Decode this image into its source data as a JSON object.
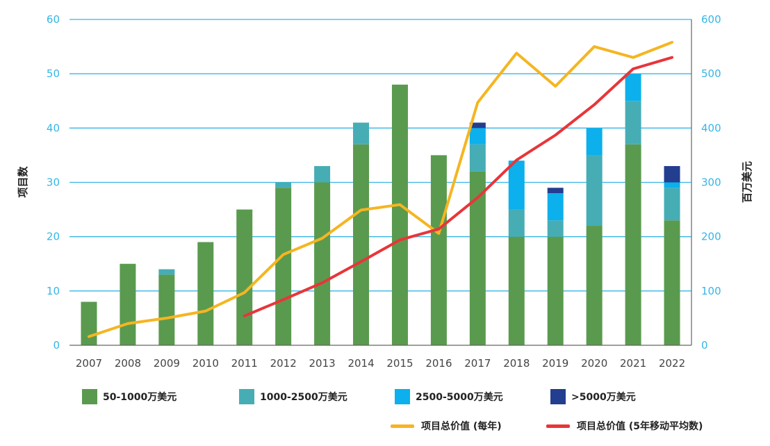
{
  "chart_data": {
    "type": "bar",
    "stacked": true,
    "categories": [
      "2007",
      "2008",
      "2009",
      "2010",
      "2011",
      "2012",
      "2013",
      "2014",
      "2015",
      "2016",
      "2017",
      "2018",
      "2019",
      "2020",
      "2021",
      "2022"
    ],
    "series": [
      {
        "name": "50-1000万美元",
        "color": "#5a9a4e",
        "axis": "left",
        "values": [
          8,
          15,
          13,
          19,
          25,
          29,
          30,
          37,
          48,
          35,
          32,
          20,
          20,
          22,
          37,
          23
        ]
      },
      {
        "name": "1000-2500万美元",
        "color": "#46adb5",
        "axis": "left",
        "values": [
          0,
          0,
          1,
          0,
          0,
          1,
          3,
          4,
          0,
          0,
          5,
          5,
          3,
          13,
          8,
          6
        ]
      },
      {
        "name": "2500-5000万美元",
        "color": "#0bb0ec",
        "axis": "left",
        "values": [
          0,
          0,
          0,
          0,
          0,
          0,
          0,
          0,
          0,
          0,
          3,
          9,
          5,
          5,
          5,
          1
        ]
      },
      {
        "name": ">5000万美元",
        "color": "#233d8f",
        "axis": "left",
        "values": [
          0,
          0,
          0,
          0,
          0,
          0,
          0,
          0,
          0,
          0,
          1,
          0,
          1,
          0,
          0,
          3
        ]
      }
    ],
    "line_series": [
      {
        "name": "项目总价值（每年）",
        "color": "#f5b521",
        "axis": "right",
        "values": [
          16,
          40,
          50,
          63,
          97,
          167,
          197,
          249,
          259,
          206,
          447,
          538,
          477,
          550,
          530,
          558
        ]
      },
      {
        "name": "项目总价值（5年移动平均数）",
        "color": "#e8353a",
        "axis": "right",
        "values": [
          null,
          null,
          null,
          null,
          54,
          84,
          115,
          154,
          194,
          214,
          272,
          341,
          387,
          443,
          509,
          530
        ]
      }
    ],
    "ylabel": "项目数",
    "y2label": "百万美元",
    "ylim": [
      0,
      60
    ],
    "y2lim": [
      0,
      600
    ],
    "yticks": [
      "0",
      "10",
      "20",
      "30",
      "40",
      "50",
      "60"
    ],
    "y2ticks": [
      "0",
      "100",
      "200",
      "300",
      "400",
      "500",
      "600"
    ],
    "grid": true,
    "legend_placement": "bottom"
  },
  "legend": {
    "bars": [
      "50-1000万美元",
      "1000-2500万美元",
      "2500-5000万美元",
      ">5000万美元"
    ],
    "lines": [
      "项目总价值 (每年)",
      "项目总价值 (5年移动平均数)"
    ]
  },
  "colors": {
    "grid": "#35b6e6",
    "tick_labels": "#35b6e6"
  }
}
